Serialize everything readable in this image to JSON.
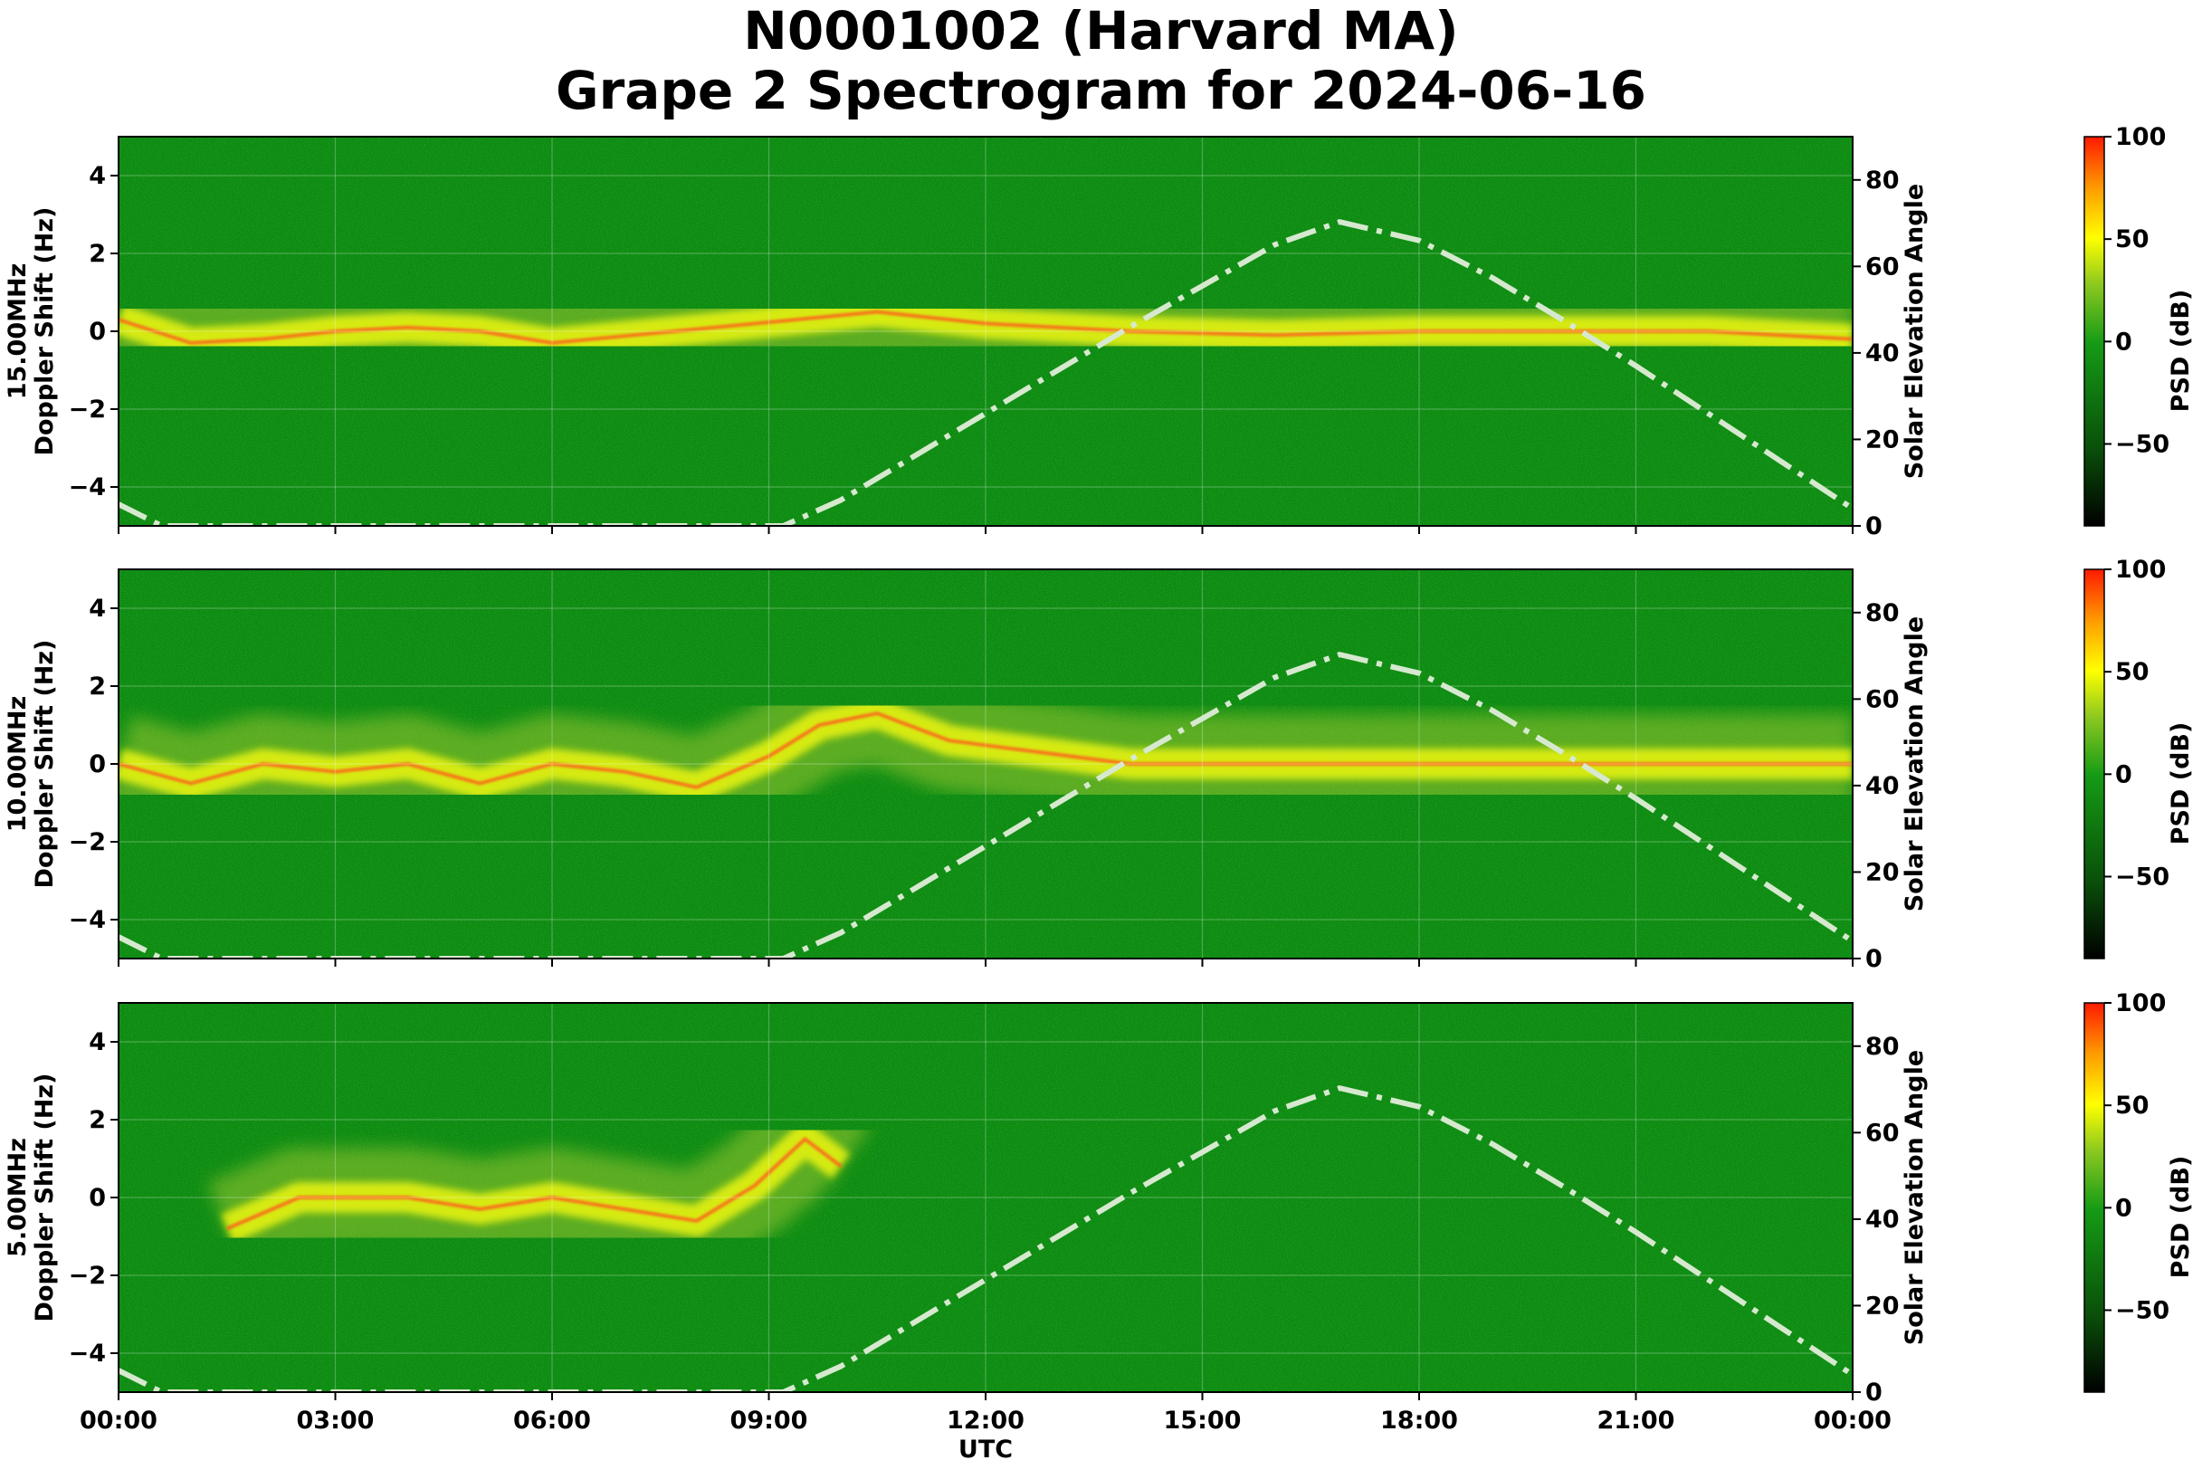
{
  "chart_data": {
    "type": "heatmap",
    "title": "N0001002 (Harvard MA)",
    "subtitle": "Grape 2 Spectrogram for 2024-06-16",
    "xlabel": "UTC",
    "x_ticks": [
      "00:00",
      "03:00",
      "06:00",
      "09:00",
      "12:00",
      "15:00",
      "18:00",
      "21:00",
      "00:00"
    ],
    "xlim_hours": [
      0,
      24
    ],
    "grid": true,
    "panels": [
      {
        "band": "15.00MHz",
        "ylabel": "Doppler Shift (Hz)",
        "ylim": [
          -5,
          5
        ],
        "y_ticks": [
          "4",
          "2",
          "0",
          "−2",
          "−4"
        ],
        "y_tick_values": [
          4,
          2,
          0,
          -2,
          -4
        ],
        "right_ylabel": "Solar Elevation Angle",
        "right_ylim": [
          0,
          90
        ],
        "right_ticks": [
          "80",
          "60",
          "40",
          "20",
          "0"
        ],
        "right_tick_values": [
          80,
          60,
          40,
          20,
          0
        ],
        "colorbar": {
          "label": "PSD (dB)",
          "range": [
            -90,
            100
          ],
          "ticks": [
            "100",
            "50",
            "0",
            "−50"
          ],
          "tick_values": [
            100,
            50,
            0,
            -50
          ]
        },
        "doppler_trace": [
          {
            "t": 0.0,
            "hz": 0.3
          },
          {
            "t": 1.0,
            "hz": -0.3
          },
          {
            "t": 2.0,
            "hz": -0.2
          },
          {
            "t": 3.0,
            "hz": 0.0
          },
          {
            "t": 4.0,
            "hz": 0.1
          },
          {
            "t": 5.0,
            "hz": 0.0
          },
          {
            "t": 6.0,
            "hz": -0.3
          },
          {
            "t": 10.5,
            "hz": 0.5
          },
          {
            "t": 12.0,
            "hz": 0.2
          },
          {
            "t": 14.0,
            "hz": 0.0
          },
          {
            "t": 16.0,
            "hz": -0.1
          },
          {
            "t": 18.0,
            "hz": 0.0
          },
          {
            "t": 20.0,
            "hz": 0.0
          },
          {
            "t": 22.0,
            "hz": 0.0
          },
          {
            "t": 24.0,
            "hz": -0.2
          }
        ]
      },
      {
        "band": "10.00MHz",
        "ylabel": "Doppler Shift (Hz)",
        "ylim": [
          -5,
          5
        ],
        "y_ticks": [
          "4",
          "2",
          "0",
          "−2",
          "−4"
        ],
        "y_tick_values": [
          4,
          2,
          0,
          -2,
          -4
        ],
        "right_ylabel": "Solar Elevation Angle",
        "right_ylim": [
          0,
          90
        ],
        "right_ticks": [
          "80",
          "60",
          "40",
          "20",
          "0"
        ],
        "right_tick_values": [
          80,
          60,
          40,
          20,
          0
        ],
        "colorbar": {
          "label": "PSD (dB)",
          "range": [
            -90,
            100
          ],
          "ticks": [
            "100",
            "50",
            "0",
            "−50"
          ],
          "tick_values": [
            100,
            50,
            0,
            -50
          ]
        },
        "doppler_trace": [
          {
            "t": 0.0,
            "hz": 0.0
          },
          {
            "t": 1.0,
            "hz": -0.5
          },
          {
            "t": 2.0,
            "hz": 0.0
          },
          {
            "t": 3.0,
            "hz": -0.2
          },
          {
            "t": 4.0,
            "hz": 0.0
          },
          {
            "t": 5.0,
            "hz": -0.5
          },
          {
            "t": 6.0,
            "hz": 0.0
          },
          {
            "t": 7.0,
            "hz": -0.2
          },
          {
            "t": 8.0,
            "hz": -0.6
          },
          {
            "t": 9.0,
            "hz": 0.2
          },
          {
            "t": 9.7,
            "hz": 1.0
          },
          {
            "t": 10.5,
            "hz": 1.3
          },
          {
            "t": 11.5,
            "hz": 0.6
          },
          {
            "t": 14.0,
            "hz": 0.0
          },
          {
            "t": 24.0,
            "hz": 0.0
          }
        ]
      },
      {
        "band": "5.00MHz",
        "ylabel": "Doppler Shift (Hz)",
        "ylim": [
          -5,
          5
        ],
        "y_ticks": [
          "4",
          "2",
          "0",
          "−2",
          "−4"
        ],
        "y_tick_values": [
          4,
          2,
          0,
          -2,
          -4
        ],
        "right_ylabel": "Solar Elevation Angle",
        "right_ylim": [
          0,
          90
        ],
        "right_ticks": [
          "80",
          "60",
          "40",
          "20",
          "0"
        ],
        "right_tick_values": [
          80,
          60,
          40,
          20,
          0
        ],
        "colorbar": {
          "label": "PSD (dB)",
          "range": [
            -90,
            100
          ],
          "ticks": [
            "100",
            "50",
            "0",
            "−50"
          ],
          "tick_values": [
            100,
            50,
            0,
            -50
          ]
        },
        "doppler_trace": [
          {
            "t": 1.5,
            "hz": -0.8
          },
          {
            "t": 2.5,
            "hz": 0.0
          },
          {
            "t": 4.0,
            "hz": 0.0
          },
          {
            "t": 5.0,
            "hz": -0.3
          },
          {
            "t": 6.0,
            "hz": 0.0
          },
          {
            "t": 7.0,
            "hz": -0.3
          },
          {
            "t": 8.0,
            "hz": -0.6
          },
          {
            "t": 8.8,
            "hz": 0.3
          },
          {
            "t": 9.5,
            "hz": 1.5
          },
          {
            "t": 10.0,
            "hz": 0.8
          }
        ]
      }
    ],
    "solar_elevation": {
      "style": "dash-dot",
      "color": "#d6e9cf",
      "points": [
        {
          "t": 0.0,
          "deg": 5
        },
        {
          "t": 0.6,
          "deg": 0
        },
        {
          "t": 9.2,
          "deg": 0
        },
        {
          "t": 10.0,
          "deg": 6
        },
        {
          "t": 11.0,
          "deg": 16
        },
        {
          "t": 12.0,
          "deg": 26
        },
        {
          "t": 13.0,
          "deg": 36
        },
        {
          "t": 14.0,
          "deg": 46
        },
        {
          "t": 15.0,
          "deg": 55.5
        },
        {
          "t": 16.0,
          "deg": 65
        },
        {
          "t": 16.9,
          "deg": 70.3
        },
        {
          "t": 18.0,
          "deg": 66
        },
        {
          "t": 19.0,
          "deg": 57.5
        },
        {
          "t": 20.0,
          "deg": 47.5
        },
        {
          "t": 21.0,
          "deg": 37
        },
        {
          "t": 22.0,
          "deg": 26
        },
        {
          "t": 23.0,
          "deg": 15
        },
        {
          "t": 24.0,
          "deg": 4
        }
      ]
    },
    "colors": {
      "background": "#0e8a12",
      "signal_weak": "#b8d436",
      "signal_mid": "#ffff10",
      "signal_strong": "#ff5a1a",
      "colormap": [
        "#000000",
        "#0b5c0b",
        "#159b15",
        "#9ccd24",
        "#ffff00",
        "#ff9a00",
        "#ff1a00"
      ]
    }
  }
}
